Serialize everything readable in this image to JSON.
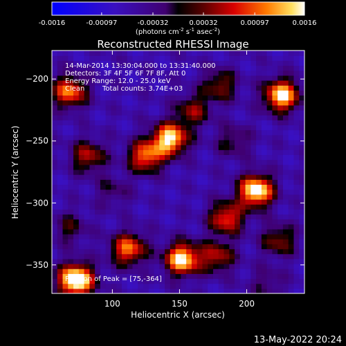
{
  "chart_data": {
    "type": "heatmap",
    "title": "Reconstructed RHESSI Image",
    "xlabel": "Heliocentric X (arcsec)",
    "ylabel": "Heliocentric Y (arcsec)",
    "xlim": [
      55,
      243
    ],
    "ylim": [
      -373,
      -177
    ],
    "x_ticks": [
      100,
      150,
      200
    ],
    "y_ticks": [
      -200,
      -250,
      -300,
      -350
    ],
    "colorbar": {
      "range": [
        -0.0016,
        0.0016
      ],
      "tick_values": [
        -0.0016,
        -0.00097,
        -0.00032,
        0.00032,
        0.00097,
        0.0016
      ],
      "tick_labels": [
        "-0.0016",
        "-0.00097",
        "-0.00032",
        "0.00032",
        "0.00097",
        "0.0016"
      ],
      "units_text": "(photons cm",
      "units_exp1": "-2",
      "units_mid": " s",
      "units_exp2": "-1",
      "units_end": " asec",
      "units_exp3": "-2",
      "units_close": ")"
    },
    "annotations": {
      "time_range": "14-Mar-2014 13:30:04.000 to 13:31:40.000",
      "detectors": "Detectors: 3F 4F 5F 6F 7F 8F, Att 0",
      "energy": "Energy Range: 12.0 - 25.0 keV",
      "method": "Clean",
      "counts": "Total counts: 3.74E+03",
      "peak": "Position of Peak = [75,-364]"
    },
    "sources": [
      {
        "x": 73,
        "y": -362,
        "flux": 0.0016
      },
      {
        "x": 152,
        "y": -345,
        "flux": 0.0013
      },
      {
        "x": 112,
        "y": -337,
        "flux": 0.001
      },
      {
        "x": 143,
        "y": -248,
        "flux": 0.0013
      },
      {
        "x": 125,
        "y": -262,
        "flux": 0.001
      },
      {
        "x": 207,
        "y": -290,
        "flux": 0.0014
      },
      {
        "x": 185,
        "y": -312,
        "flux": 0.0009
      },
      {
        "x": 226,
        "y": -213,
        "flux": 0.0013
      },
      {
        "x": 68,
        "y": -210,
        "flux": 0.001
      },
      {
        "x": 82,
        "y": -262,
        "flux": 0.0007
      },
      {
        "x": 178,
        "y": -343,
        "flux": 0.0007
      },
      {
        "x": 224,
        "y": -330,
        "flux": 0.0006
      },
      {
        "x": 180,
        "y": -205,
        "flux": 0.0006
      },
      {
        "x": 68,
        "y": -320,
        "flux": 0.0004
      },
      {
        "x": 100,
        "y": -290,
        "flux": 0.0003
      },
      {
        "x": 215,
        "y": -365,
        "flux": 0.0003
      },
      {
        "x": 160,
        "y": -225,
        "flux": 0.0006
      },
      {
        "x": 190,
        "y": -250,
        "flux": 0.0004
      }
    ],
    "grid": false
  },
  "footer": {
    "date": "13-May-2022 20:24"
  }
}
